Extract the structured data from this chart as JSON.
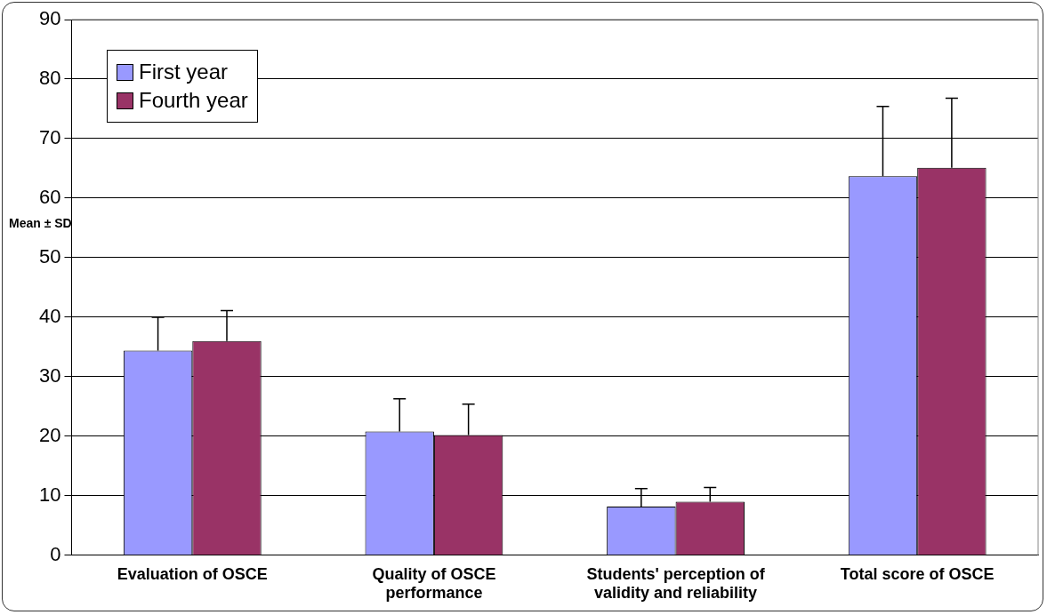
{
  "chart_data": {
    "type": "bar",
    "ylabel": "Mean ± SD",
    "categories": [
      "Evaluation of OSCE",
      "Quality of OSCE performance",
      "Students' perception of validity and reliability",
      "Total score of OSCE"
    ],
    "series": [
      {
        "name": "First year",
        "color": "#9999ff",
        "values": [
          34.4,
          20.8,
          8.2,
          63.7
        ],
        "errors": [
          5.6,
          5.5,
          3.0,
          11.7
        ]
      },
      {
        "name": "Fourth year",
        "color": "#993366",
        "values": [
          36.0,
          20.2,
          9.0,
          65.1
        ],
        "errors": [
          5.1,
          5.2,
          2.4,
          11.7
        ]
      }
    ],
    "ylim": [
      0,
      90
    ],
    "yticks": [
      0,
      10,
      20,
      30,
      40,
      50,
      60,
      70,
      80,
      90
    ],
    "grid": "y",
    "legend": "top left"
  }
}
